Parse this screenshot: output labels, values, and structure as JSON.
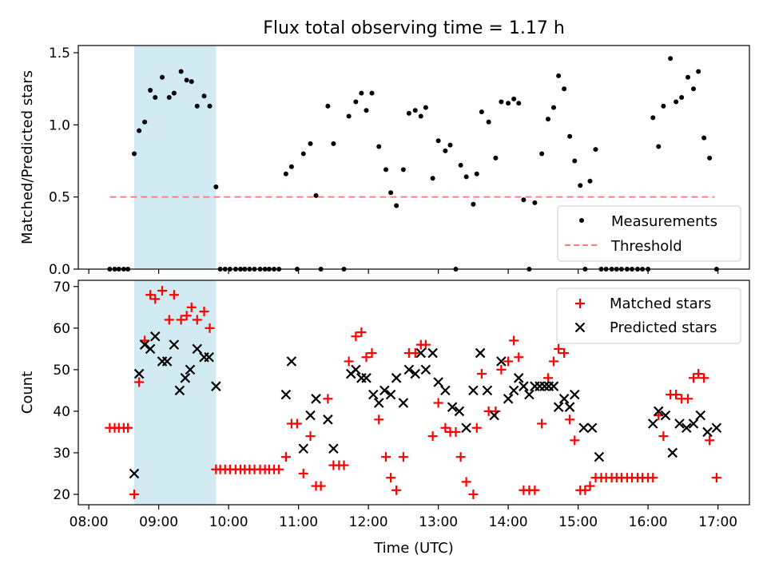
{
  "figure": {
    "title": "Flux total observing time = 1.17 h",
    "xlabel": "Time (UTC)",
    "xticks": [
      "08:00",
      "09:00",
      "10:00",
      "11:00",
      "12:00",
      "13:00",
      "14:00",
      "15:00",
      "16:00",
      "17:00"
    ],
    "xlim": [
      7.85,
      17.45
    ],
    "highlight": {
      "start": 8.65,
      "end": 9.82,
      "color": "#add8e6"
    }
  },
  "chart_data": [
    {
      "type": "scatter",
      "ylabel": "Matched/Predicted stars",
      "ylim": [
        0,
        1.55
      ],
      "yticks": [
        "0.0",
        "0.5",
        "1.0",
        "1.5"
      ],
      "legend": {
        "position": "lower-right"
      },
      "threshold": {
        "name": "Threshold",
        "value": 0.5,
        "x": [
          8.3,
          16.95
        ],
        "color": "#ff7f7f"
      },
      "series": [
        {
          "name": "Measurements",
          "color": "#000000",
          "x": [
            8.3,
            8.37,
            8.43,
            8.5,
            8.56,
            8.65,
            8.72,
            8.8,
            8.88,
            8.95,
            9.05,
            9.15,
            9.22,
            9.32,
            9.4,
            9.47,
            9.55,
            9.65,
            9.73,
            9.82,
            9.88,
            9.95,
            10.02,
            10.1,
            10.17,
            10.23,
            10.3,
            10.37,
            10.45,
            10.52,
            10.58,
            10.65,
            10.72,
            10.82,
            10.9,
            10.98,
            11.07,
            11.17,
            11.25,
            11.32,
            11.42,
            11.5,
            11.65,
            11.72,
            11.82,
            11.9,
            11.97,
            12.05,
            12.15,
            12.25,
            12.32,
            12.4,
            12.5,
            12.58,
            12.67,
            12.75,
            12.82,
            12.92,
            13.0,
            13.1,
            13.17,
            13.25,
            13.32,
            13.4,
            13.5,
            13.55,
            13.62,
            13.72,
            13.82,
            13.9,
            14.0,
            14.08,
            14.15,
            14.22,
            14.3,
            14.38,
            14.48,
            14.57,
            14.65,
            14.72,
            14.8,
            14.88,
            14.95,
            15.03,
            15.1,
            15.17,
            15.25,
            15.33,
            15.4,
            15.48,
            15.55,
            15.62,
            15.7,
            15.77,
            15.85,
            15.92,
            16.0,
            16.07,
            16.15,
            16.22,
            16.32,
            16.4,
            16.48,
            16.57,
            16.65,
            16.72,
            16.8,
            16.88,
            16.98
          ],
          "y": [
            0,
            0,
            0,
            0,
            0,
            0.8,
            0.96,
            1.02,
            1.24,
            1.19,
            1.33,
            1.19,
            1.22,
            1.37,
            1.31,
            1.3,
            1.13,
            1.2,
            1.13,
            0.57,
            0,
            0,
            0,
            0,
            0,
            0,
            0,
            0,
            0,
            0,
            0,
            0,
            0,
            0.66,
            0.71,
            0,
            0.8,
            0.87,
            0.51,
            0,
            1.13,
            0.87,
            0,
            1.06,
            1.16,
            1.22,
            1.1,
            1.22,
            0.85,
            0.69,
            0.53,
            0.44,
            0.69,
            1.08,
            1.1,
            1.06,
            1.12,
            0.63,
            0.89,
            0.82,
            0.86,
            0,
            0.72,
            0.64,
            0.45,
            0.66,
            1.09,
            1.02,
            0.77,
            1.16,
            1.15,
            1.18,
            1.15,
            0.48,
            0,
            0.46,
            0.8,
            1.04,
            1.12,
            1.34,
            1.25,
            0.92,
            0.75,
            0.58,
            0,
            0.61,
            0.83,
            0,
            0,
            0,
            0,
            0,
            0,
            0,
            0,
            0,
            0,
            1.05,
            0.85,
            1.13,
            1.46,
            1.16,
            1.19,
            1.33,
            1.25,
            1.37,
            0.91,
            0.77,
            0
          ]
        }
      ]
    },
    {
      "type": "scatter",
      "ylabel": "Count",
      "ylim": [
        17.5,
        71.5
      ],
      "yticks": [
        "20",
        "30",
        "40",
        "50",
        "60",
        "70"
      ],
      "legend": {
        "position": "upper-right"
      },
      "series": [
        {
          "name": "Matched stars",
          "marker": "plus",
          "color": "#ff0000",
          "x": [
            8.3,
            8.37,
            8.43,
            8.5,
            8.56,
            8.65,
            8.72,
            8.8,
            8.88,
            8.95,
            9.05,
            9.15,
            9.22,
            9.32,
            9.4,
            9.47,
            9.55,
            9.65,
            9.73,
            9.82,
            9.88,
            9.95,
            10.02,
            10.1,
            10.17,
            10.23,
            10.3,
            10.37,
            10.45,
            10.52,
            10.58,
            10.65,
            10.72,
            10.82,
            10.9,
            10.98,
            11.07,
            11.17,
            11.25,
            11.32,
            11.42,
            11.5,
            11.58,
            11.65,
            11.72,
            11.82,
            11.9,
            11.97,
            12.05,
            12.15,
            12.25,
            12.32,
            12.4,
            12.5,
            12.58,
            12.67,
            12.75,
            12.82,
            12.92,
            13.0,
            13.1,
            13.17,
            13.25,
            13.32,
            13.4,
            13.5,
            13.55,
            13.62,
            13.72,
            13.82,
            13.9,
            14.0,
            14.08,
            14.15,
            14.22,
            14.3,
            14.38,
            14.48,
            14.57,
            14.65,
            14.72,
            14.8,
            14.88,
            14.95,
            15.03,
            15.1,
            15.17,
            15.25,
            15.33,
            15.4,
            15.48,
            15.55,
            15.62,
            15.7,
            15.77,
            15.85,
            15.92,
            16.0,
            16.07,
            16.15,
            16.22,
            16.32,
            16.4,
            16.48,
            16.57,
            16.65,
            16.72,
            16.8,
            16.88,
            16.98
          ],
          "y": [
            36,
            36,
            36,
            36,
            36,
            20,
            47,
            57,
            68,
            67,
            69,
            62,
            68,
            62,
            63,
            65,
            62,
            64,
            60,
            26,
            26,
            26,
            26,
            26,
            26,
            26,
            26,
            26,
            26,
            26,
            26,
            26,
            26,
            29,
            37,
            37,
            25,
            34,
            22,
            22,
            43,
            27,
            27,
            27,
            52,
            58,
            59,
            53,
            54,
            38,
            29,
            24,
            21,
            29,
            54,
            54,
            56,
            56,
            34,
            42,
            36,
            35,
            35,
            29,
            23,
            20,
            36,
            49,
            40,
            40,
            50,
            52,
            57,
            53,
            21,
            21,
            21,
            37,
            48,
            52,
            55,
            54,
            38,
            33,
            21,
            21,
            22,
            24,
            24,
            24,
            24,
            24,
            24,
            24,
            24,
            24,
            24,
            24,
            24,
            39,
            34,
            44,
            44,
            43,
            43,
            48,
            49,
            48,
            33,
            24
          ]
        },
        {
          "name": "Predicted stars",
          "marker": "x",
          "color": "#000000",
          "x": [
            8.65,
            8.72,
            8.8,
            8.88,
            8.95,
            9.05,
            9.12,
            9.22,
            9.3,
            9.38,
            9.45,
            9.55,
            9.65,
            9.72,
            9.82,
            10.82,
            10.9,
            11.07,
            11.17,
            11.25,
            11.42,
            11.5,
            11.75,
            11.82,
            11.9,
            11.97,
            12.07,
            12.15,
            12.23,
            12.32,
            12.4,
            12.5,
            12.58,
            12.67,
            12.75,
            12.82,
            12.92,
            13.0,
            13.1,
            13.2,
            13.3,
            13.4,
            13.5,
            13.6,
            13.7,
            13.8,
            13.9,
            14.0,
            14.08,
            14.15,
            14.22,
            14.3,
            14.38,
            14.45,
            14.52,
            14.58,
            14.65,
            14.72,
            14.8,
            14.88,
            14.95,
            15.08,
            15.2,
            15.3,
            16.07,
            16.15,
            16.25,
            16.35,
            16.45,
            16.55,
            16.65,
            16.75,
            16.85,
            16.98
          ],
          "y": [
            25,
            49,
            56,
            55,
            58,
            52,
            52,
            56,
            45,
            48,
            50,
            55,
            53,
            53,
            46,
            44,
            52,
            31,
            39,
            43,
            38,
            31,
            49,
            50,
            48,
            48,
            44,
            42,
            45,
            44,
            48,
            42,
            50,
            49,
            54,
            50,
            54,
            47,
            45,
            41,
            40,
            36,
            45,
            54,
            45,
            39,
            52,
            43,
            45,
            48,
            46,
            44,
            46,
            46,
            46,
            46,
            46,
            41,
            43,
            41,
            44,
            36,
            36,
            29,
            37,
            40,
            39,
            30,
            37,
            36,
            37,
            39,
            35,
            36
          ]
        }
      ]
    }
  ]
}
